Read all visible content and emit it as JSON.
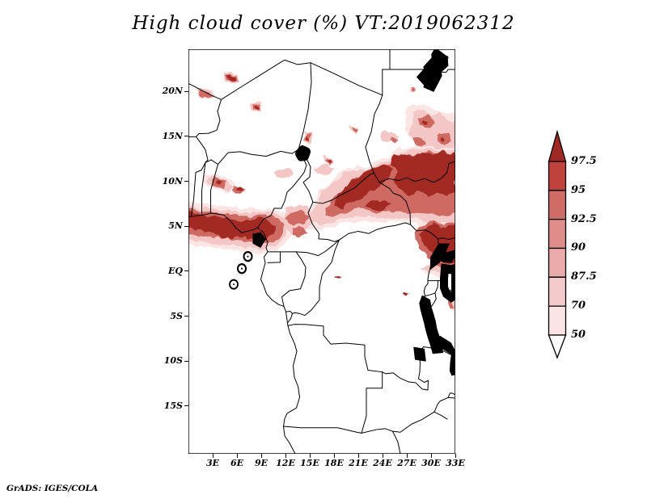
{
  "title": "High cloud cover (%) VT:2019062312",
  "credit": "GrADS: IGES/COLA",
  "axes": {
    "lat_ticks": [
      {
        "value": 20,
        "label": "20N"
      },
      {
        "value": 15,
        "label": "15N"
      },
      {
        "value": 10,
        "label": "10N"
      },
      {
        "value": 5,
        "label": "5N"
      },
      {
        "value": 0,
        "label": "EQ"
      },
      {
        "value": -5,
        "label": "5S"
      },
      {
        "value": -10,
        "label": "10S"
      },
      {
        "value": -15,
        "label": "15S"
      }
    ],
    "lon_ticks": [
      {
        "value": 3,
        "label": "3E"
      },
      {
        "value": 6,
        "label": "6E"
      },
      {
        "value": 9,
        "label": "9E"
      },
      {
        "value": 12,
        "label": "12E"
      },
      {
        "value": 15,
        "label": "15E"
      },
      {
        "value": 18,
        "label": "18E"
      },
      {
        "value": 21,
        "label": "21E"
      },
      {
        "value": 24,
        "label": "24E"
      },
      {
        "value": 27,
        "label": "27E"
      },
      {
        "value": 30,
        "label": "30E"
      },
      {
        "value": 33,
        "label": "33E"
      }
    ]
  },
  "colorbar": {
    "labels": [
      "97.5",
      "95",
      "92.5",
      "90",
      "87.5",
      "70",
      "50"
    ],
    "segments": [
      {
        "range": "> 97.5",
        "color": "#9e2a23",
        "shape": "arrow-up"
      },
      {
        "range": "95 - 97.5",
        "color": "#c0423d",
        "shape": "box"
      },
      {
        "range": "92.5 - 95",
        "color": "#d06c66",
        "shape": "box"
      },
      {
        "range": "90 - 92.5",
        "color": "#dd8e8a",
        "shape": "box"
      },
      {
        "range": "87.5 - 90",
        "color": "#eaabaa",
        "shape": "box"
      },
      {
        "range": "70 - 87.5",
        "color": "#f4cbca",
        "shape": "box"
      },
      {
        "range": "50 - 70",
        "color": "#fbe5e4",
        "shape": "box"
      },
      {
        "range": "< 50",
        "color": "#ffffff",
        "shape": "arrow-down"
      }
    ]
  },
  "palette": {
    "cloud_vlight": "#fbe5e4",
    "cloud_light": "#f3c7c6",
    "cloud_medium": "#cf6a64",
    "cloud_dark": "#a22b22",
    "land": "#ffffff",
    "border": "#000000"
  },
  "chart_data": {
    "type": "heatmap",
    "title": "High cloud cover (%) VT:2019062312",
    "variable": "High cloud cover",
    "units": "%",
    "valid_time": "2019062312",
    "projection": "lat-lon map, central Africa",
    "lon_range_deg_east": [
      0,
      33
    ],
    "lat_range_deg": [
      -20.3,
      24.7
    ],
    "contour_levels": [
      50,
      70,
      87.5,
      90,
      92.5,
      95,
      97.5
    ],
    "legend_position": "right vertical color bar with end arrows",
    "grid": false,
    "source_credit": "GrADS: IGES/COLA",
    "regions": [
      {
        "name": "Gulf of Guinea coastal band",
        "lon": [
          0,
          12
        ],
        "lat": [
          3,
          7
        ],
        "cover_pct": ">97.5 core, 50-95 fringe"
      },
      {
        "name": "Sahel/Sudan ITCZ band",
        "lon": [
          17,
          33
        ],
        "lat": [
          6,
          13.5
        ],
        "cover_pct": ">97.5 blotchy core, 50-95 fringe"
      },
      {
        "name": "Uganda / South Sudan mass",
        "lon": [
          28,
          33
        ],
        "lat": [
          0,
          5
        ],
        "cover_pct": ">97.5"
      },
      {
        "name": "Cameroon-CAR scattered streaks",
        "lon": [
          12,
          17
        ],
        "lat": [
          4,
          7
        ],
        "cover_pct": "70-95"
      },
      {
        "name": "NE Sudan scattered cells",
        "lon": [
          27,
          33
        ],
        "lat": [
          13.5,
          18
        ],
        "cover_pct": "50-97.5 scattered"
      },
      {
        "name": "Sahara isolated streaks",
        "lon": [
          1,
          21
        ],
        "lat": [
          12,
          22
        ],
        "cover_pct": "small isolated 70-97.5 cells"
      },
      {
        "name": "Lake Victoria east fringe",
        "lon": [
          31.8,
          33
        ],
        "lat": [
          -4.5,
          1
        ],
        "cover_pct": "50-87.5"
      },
      {
        "name": "Congo basin / Angola / Zambia",
        "lon": [
          9,
          30
        ],
        "lat": [
          -20,
          -1
        ],
        "cover_pct": "< 50 (clear)"
      }
    ]
  }
}
